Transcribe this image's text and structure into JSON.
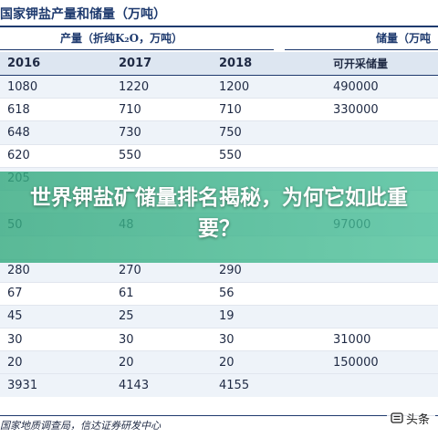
{
  "header": {
    "title": "国家钾盐产量和储量（万吨）",
    "production_label": "产量（折纯K₂O，万吨）",
    "reserves_label": "储量（万吨"
  },
  "table": {
    "columns": [
      "2016",
      "2017",
      "2018",
      "可开采储量"
    ],
    "rows": [
      [
        "1080",
        "1220",
        "1200",
        "490000"
      ],
      [
        "618",
        "710",
        "710",
        "330000"
      ],
      [
        "648",
        "730",
        "750",
        ""
      ],
      [
        "620",
        "550",
        "550",
        ""
      ],
      [
        "205",
        "",
        "",
        ""
      ],
      [
        "",
        "",
        "",
        ""
      ],
      [
        "50",
        "48",
        "",
        "97000"
      ],
      [
        "",
        "",
        "",
        ""
      ],
      [
        "280",
        "270",
        "290",
        ""
      ],
      [
        "67",
        "61",
        "56",
        ""
      ],
      [
        "45",
        "25",
        "19",
        ""
      ],
      [
        "30",
        "30",
        "30",
        "31000"
      ],
      [
        "20",
        "20",
        "20",
        "150000"
      ]
    ],
    "total": [
      "3931",
      "4143",
      "4155",
      ""
    ]
  },
  "source": "国家地质调查局，信达证券研发中心",
  "overlay": {
    "headline": "世界钾盐矿储量排名揭秘，为何它如此重要？"
  },
  "watermark": {
    "text": "头条",
    "icon": "toutiao-logo-icon"
  }
}
